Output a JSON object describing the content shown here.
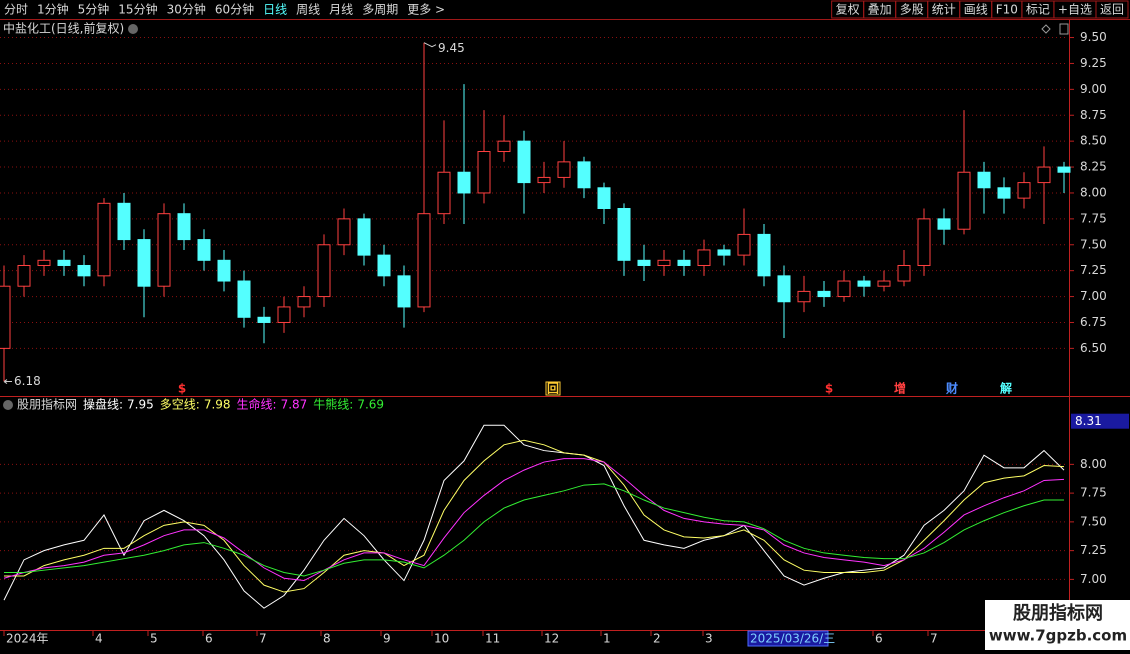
{
  "toolbar": {
    "left": [
      "分时",
      "1分钟",
      "5分钟",
      "15分钟",
      "30分钟",
      "60分钟",
      "日线",
      "周线",
      "月线",
      "多周期",
      "更多 >"
    ],
    "active": 6,
    "right": [
      "复权",
      "叠加",
      "多股",
      "统计",
      "画线",
      "F10",
      "标记",
      "+自选",
      "返回"
    ]
  },
  "watermark": {
    "title": "股朋指标网",
    "url": "www.7gpzb.com"
  },
  "chart_data": [
    {
      "type": "candlestick",
      "title": "中盐化工(日线,前复权)",
      "up_color": "#ff4040",
      "down_color": "#54ffff",
      "x": [
        0,
        1,
        2,
        3,
        4,
        5,
        6,
        7,
        8,
        9,
        10,
        11,
        12,
        13,
        14,
        15,
        16,
        17,
        18,
        19,
        20,
        21,
        22,
        23,
        24,
        25,
        26,
        27,
        28,
        29,
        30,
        31,
        32,
        33,
        34,
        35,
        36,
        37,
        38,
        39,
        40,
        41,
        42,
        43,
        44,
        45,
        46,
        47,
        48,
        49,
        50,
        51,
        52,
        53
      ],
      "open": [
        6.5,
        7.1,
        7.3,
        7.35,
        7.3,
        7.2,
        7.9,
        7.55,
        7.1,
        7.8,
        7.55,
        7.35,
        7.15,
        6.8,
        6.75,
        6.9,
        7.0,
        7.5,
        7.75,
        7.4,
        7.2,
        6.9,
        7.8,
        8.2,
        8.0,
        8.4,
        8.5,
        8.1,
        8.15,
        8.3,
        8.05,
        7.85,
        7.35,
        7.3,
        7.35,
        7.3,
        7.45,
        7.4,
        7.6,
        7.2,
        6.95,
        7.05,
        7.0,
        7.15,
        7.1,
        7.15,
        7.3,
        7.75,
        7.65,
        8.2,
        8.05,
        7.95,
        8.1,
        8.25
      ],
      "high": [
        7.3,
        7.4,
        7.45,
        7.45,
        7.4,
        7.95,
        8.0,
        7.65,
        7.9,
        7.9,
        7.65,
        7.45,
        7.25,
        6.9,
        7.0,
        7.1,
        7.6,
        7.85,
        7.8,
        7.5,
        7.3,
        9.45,
        8.7,
        9.05,
        8.8,
        8.75,
        8.6,
        8.3,
        8.5,
        8.35,
        8.1,
        7.9,
        7.5,
        7.45,
        7.45,
        7.55,
        7.5,
        7.85,
        7.7,
        7.3,
        7.2,
        7.15,
        7.25,
        7.2,
        7.25,
        7.45,
        7.85,
        7.85,
        8.8,
        8.3,
        8.15,
        8.2,
        8.45,
        8.3
      ],
      "low": [
        6.18,
        7.0,
        7.2,
        7.2,
        7.1,
        7.1,
        7.45,
        6.8,
        7.0,
        7.45,
        7.25,
        7.05,
        6.7,
        6.55,
        6.65,
        6.8,
        6.9,
        7.4,
        7.3,
        7.1,
        6.7,
        6.85,
        7.7,
        7.7,
        7.9,
        8.3,
        7.8,
        8.0,
        8.05,
        7.95,
        7.7,
        7.2,
        7.15,
        7.2,
        7.2,
        7.2,
        7.3,
        7.3,
        7.1,
        6.6,
        6.85,
        6.9,
        6.95,
        7.0,
        7.05,
        7.1,
        7.2,
        7.5,
        7.6,
        7.8,
        7.8,
        7.85,
        7.7,
        8.0
      ],
      "close": [
        7.1,
        7.3,
        7.35,
        7.3,
        7.2,
        7.9,
        7.55,
        7.1,
        7.8,
        7.55,
        7.35,
        7.15,
        6.8,
        6.75,
        6.9,
        7.0,
        7.5,
        7.75,
        7.4,
        7.2,
        6.9,
        7.8,
        8.2,
        8.0,
        8.4,
        8.5,
        8.1,
        8.15,
        8.3,
        8.05,
        7.85,
        7.35,
        7.3,
        7.35,
        7.3,
        7.45,
        7.4,
        7.6,
        7.2,
        6.95,
        7.05,
        7.0,
        7.15,
        7.1,
        7.15,
        7.3,
        7.75,
        7.65,
        8.2,
        8.05,
        7.95,
        8.1,
        8.25,
        8.2
      ],
      "xlim": [
        -0.2,
        53.2
      ],
      "ylim": [
        6.05,
        9.65
      ],
      "yticks": [
        {
          "value": 9.5,
          "label": "9.50"
        },
        {
          "value": 9.25,
          "label": "9.25"
        },
        {
          "value": 9.0,
          "label": "9.00"
        },
        {
          "value": 8.75,
          "label": "8.75"
        },
        {
          "value": 8.5,
          "label": "8.50"
        },
        {
          "value": 8.25,
          "label": "8.25"
        },
        {
          "value": 8.0,
          "label": "8.00"
        },
        {
          "value": 7.75,
          "label": "7.75"
        },
        {
          "value": 7.5,
          "label": "7.50"
        },
        {
          "value": 7.25,
          "label": "7.25"
        },
        {
          "value": 7.0,
          "label": "7.00"
        },
        {
          "value": 6.75,
          "label": "6.75"
        },
        {
          "value": 6.5,
          "label": "6.50"
        }
      ],
      "grid": true,
      "max_index": 21,
      "min_index": 0,
      "events": [
        {
          "x": 8.9,
          "label": "$",
          "color": "#ff3030"
        },
        {
          "x": 27.45,
          "label": "回",
          "color": "#ffcc33",
          "box": true
        },
        {
          "x": 41.25,
          "label": "$",
          "color": "#ff3030"
        },
        {
          "x": 44.8,
          "label": "增",
          "color": "#ff4040"
        },
        {
          "x": 47.4,
          "label": "财",
          "color": "#4d8cff"
        },
        {
          "x": 50.1,
          "label": "解",
          "color": "#54ffff"
        }
      ]
    },
    {
      "type": "line",
      "title": "股朋指标网",
      "x": [
        0,
        1,
        2,
        3,
        4,
        5,
        6,
        7,
        8,
        9,
        10,
        11,
        12,
        13,
        14,
        15,
        16,
        17,
        18,
        19,
        20,
        21,
        22,
        23,
        24,
        25,
        26,
        27,
        28,
        29,
        30,
        31,
        32,
        33,
        34,
        35,
        36,
        37,
        38,
        39,
        40,
        41,
        42,
        43,
        44,
        45,
        46,
        47,
        48,
        49,
        50,
        51,
        52,
        53
      ],
      "series": [
        {
          "name": "操盘线:",
          "color": "#ffffff",
          "values": [
            6.82,
            7.17,
            7.25,
            7.3,
            7.34,
            7.56,
            7.21,
            7.51,
            7.6,
            7.51,
            7.38,
            7.17,
            6.9,
            6.75,
            6.86,
            7.08,
            7.34,
            7.53,
            7.38,
            7.17,
            6.99,
            7.34,
            7.86,
            8.03,
            8.34,
            8.34,
            8.17,
            8.12,
            8.1,
            8.08,
            7.99,
            7.64,
            7.34,
            7.3,
            7.27,
            7.34,
            7.38,
            7.47,
            7.25,
            7.03,
            6.95,
            7.01,
            7.06,
            7.08,
            7.1,
            7.21,
            7.47,
            7.6,
            7.77,
            8.08,
            7.97,
            7.97,
            8.12,
            7.95
          ]
        },
        {
          "name": "多空线:",
          "color": "#ffff66",
          "values": [
            7.03,
            7.03,
            7.12,
            7.17,
            7.21,
            7.27,
            7.27,
            7.38,
            7.47,
            7.5,
            7.47,
            7.34,
            7.12,
            6.95,
            6.89,
            6.92,
            7.06,
            7.21,
            7.25,
            7.23,
            7.12,
            7.21,
            7.6,
            7.86,
            8.03,
            8.17,
            8.21,
            8.17,
            8.1,
            8.08,
            8.02,
            7.82,
            7.56,
            7.43,
            7.37,
            7.36,
            7.38,
            7.43,
            7.34,
            7.17,
            7.08,
            7.06,
            7.06,
            7.06,
            7.08,
            7.17,
            7.34,
            7.51,
            7.69,
            7.84,
            7.88,
            7.9,
            7.99,
            7.98
          ]
        },
        {
          "name": "生命线:",
          "color": "#ff33ff",
          "values": [
            7.01,
            7.06,
            7.1,
            7.12,
            7.15,
            7.21,
            7.23,
            7.3,
            7.38,
            7.43,
            7.43,
            7.36,
            7.23,
            7.1,
            7.01,
            6.99,
            7.08,
            7.17,
            7.23,
            7.23,
            7.17,
            7.12,
            7.36,
            7.58,
            7.73,
            7.86,
            7.95,
            8.02,
            8.05,
            8.05,
            8.02,
            7.88,
            7.73,
            7.6,
            7.53,
            7.5,
            7.48,
            7.47,
            7.43,
            7.3,
            7.23,
            7.19,
            7.17,
            7.15,
            7.12,
            7.17,
            7.27,
            7.41,
            7.56,
            7.64,
            7.71,
            7.77,
            7.86,
            7.87
          ]
        },
        {
          "name": "牛熊线:",
          "color": "#33ee33",
          "values": [
            7.06,
            7.06,
            7.08,
            7.1,
            7.12,
            7.15,
            7.18,
            7.21,
            7.25,
            7.3,
            7.32,
            7.27,
            7.21,
            7.12,
            7.06,
            7.03,
            7.08,
            7.14,
            7.17,
            7.17,
            7.15,
            7.1,
            7.21,
            7.34,
            7.5,
            7.62,
            7.69,
            7.73,
            7.77,
            7.82,
            7.83,
            7.77,
            7.69,
            7.62,
            7.58,
            7.54,
            7.51,
            7.5,
            7.44,
            7.34,
            7.27,
            7.23,
            7.21,
            7.19,
            7.18,
            7.18,
            7.23,
            7.32,
            7.43,
            7.51,
            7.58,
            7.64,
            7.69,
            7.69
          ]
        }
      ],
      "xlim": [
        -0.2,
        53.2
      ],
      "ylim": [
        6.56,
        8.49
      ],
      "yticks": [
        {
          "value": 8.0,
          "label": "8.00"
        },
        {
          "value": 7.75,
          "label": "7.75"
        },
        {
          "value": 7.5,
          "label": "7.50"
        },
        {
          "value": 7.25,
          "label": "7.25"
        },
        {
          "value": 7.0,
          "label": "7.00"
        }
      ],
      "xticks": [
        {
          "value": 0,
          "label": "2024年"
        },
        {
          "value": 4.45,
          "label": "4"
        },
        {
          "value": 7.2,
          "label": "5"
        },
        {
          "value": 9.95,
          "label": "6"
        },
        {
          "value": 12.65,
          "label": "7"
        },
        {
          "value": 15.85,
          "label": "8"
        },
        {
          "value": 18.85,
          "label": "9"
        },
        {
          "value": 21.4,
          "label": "10"
        },
        {
          "value": 23.95,
          "label": "11"
        },
        {
          "value": 26.9,
          "label": "12"
        },
        {
          "value": 29.85,
          "label": "1"
        },
        {
          "value": 32.35,
          "label": "2"
        },
        {
          "value": 34.95,
          "label": "3"
        },
        {
          "value": 43.45,
          "label": "6"
        },
        {
          "value": 46.2,
          "label": "7"
        }
      ],
      "grid": true,
      "cursor": {
        "x": 37.2,
        "label": "2025/03/26/三",
        "value": 8.31
      }
    }
  ]
}
